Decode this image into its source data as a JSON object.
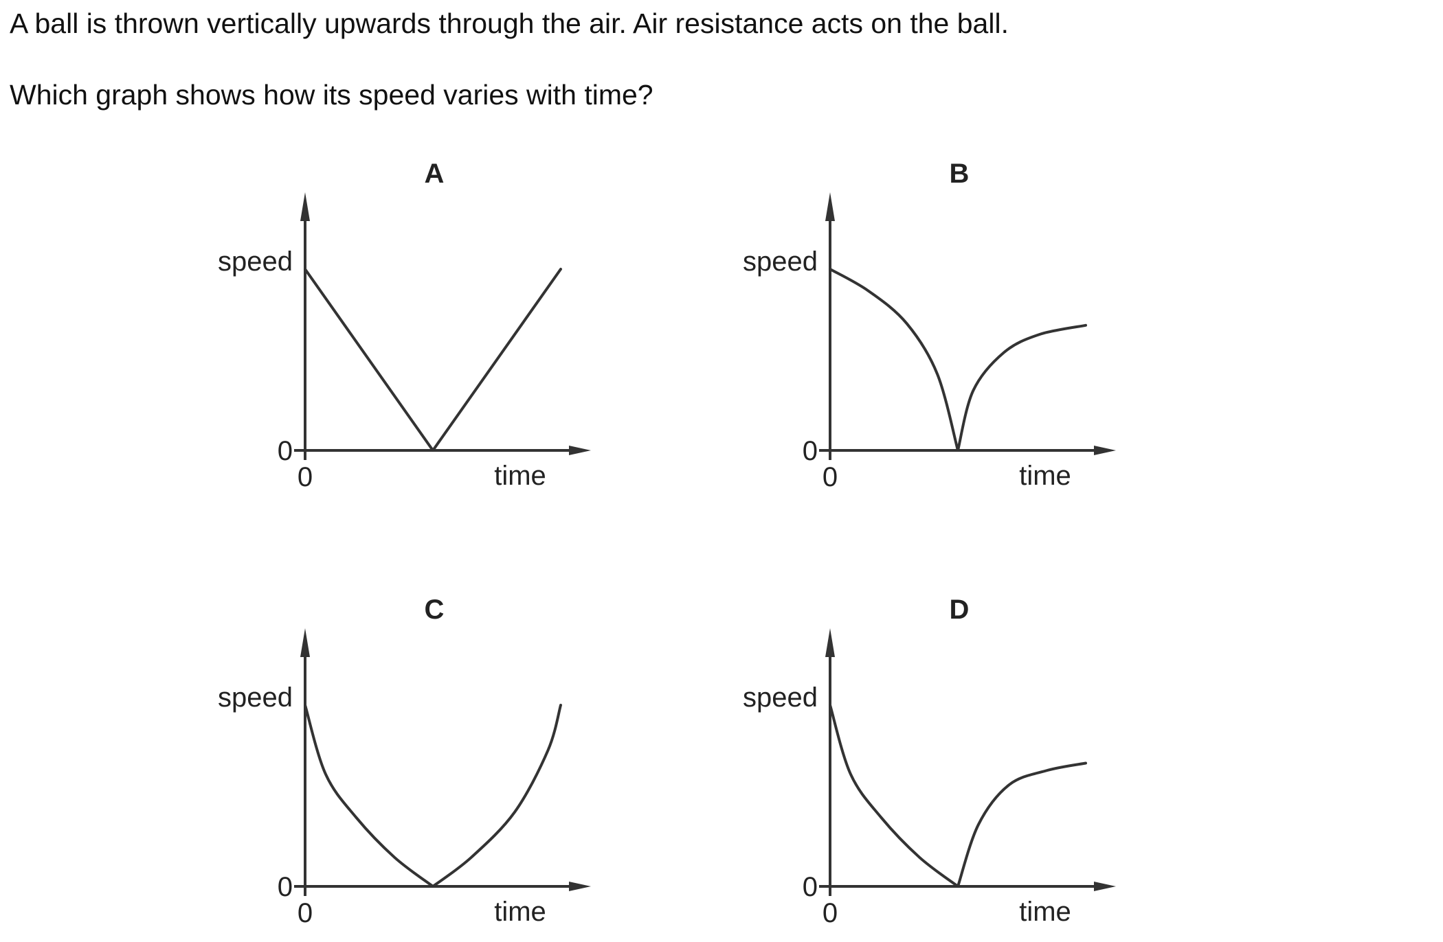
{
  "question": {
    "line1": "A ball is thrown vertically upwards through the air. Air resistance acts on the ball.",
    "line2": "Which graph shows how its speed varies with time?"
  },
  "chart_data": [
    {
      "type": "line",
      "option": "A",
      "xlabel": "time",
      "ylabel": "speed",
      "x_origin_label": "0",
      "y_origin_label": "0",
      "shape": "straight lines",
      "x": [
        0,
        0.5,
        1.0
      ],
      "y": [
        1.0,
        0,
        1.0
      ]
    },
    {
      "type": "line",
      "option": "B",
      "xlabel": "time",
      "ylabel": "speed",
      "x_origin_label": "0",
      "y_origin_label": "0",
      "shape": "concave-down fall to zero, then rising curve levelling off",
      "x": [
        0,
        0.15,
        0.3,
        0.42,
        0.5,
        0.56,
        0.68,
        0.82,
        1.0
      ],
      "y": [
        1.0,
        0.88,
        0.7,
        0.42,
        0,
        0.33,
        0.54,
        0.64,
        0.69
      ]
    },
    {
      "type": "line",
      "option": "C",
      "xlabel": "time",
      "ylabel": "speed",
      "x_origin_label": "0",
      "y_origin_label": "0",
      "shape": "concave-up fall to zero, then accelerating rise",
      "x": [
        0,
        0.08,
        0.2,
        0.35,
        0.5,
        0.65,
        0.82,
        0.95,
        1.0
      ],
      "y": [
        1.0,
        0.62,
        0.38,
        0.16,
        0,
        0.16,
        0.41,
        0.75,
        1.0
      ]
    },
    {
      "type": "line",
      "option": "D",
      "xlabel": "time",
      "ylabel": "speed",
      "x_origin_label": "0",
      "y_origin_label": "0",
      "shape": "concave-up fall to zero, then rising curve levelling off",
      "x": [
        0,
        0.08,
        0.2,
        0.35,
        0.5,
        0.58,
        0.7,
        0.85,
        1.0
      ],
      "y": [
        1.0,
        0.62,
        0.38,
        0.16,
        0,
        0.34,
        0.56,
        0.64,
        0.68
      ]
    }
  ]
}
